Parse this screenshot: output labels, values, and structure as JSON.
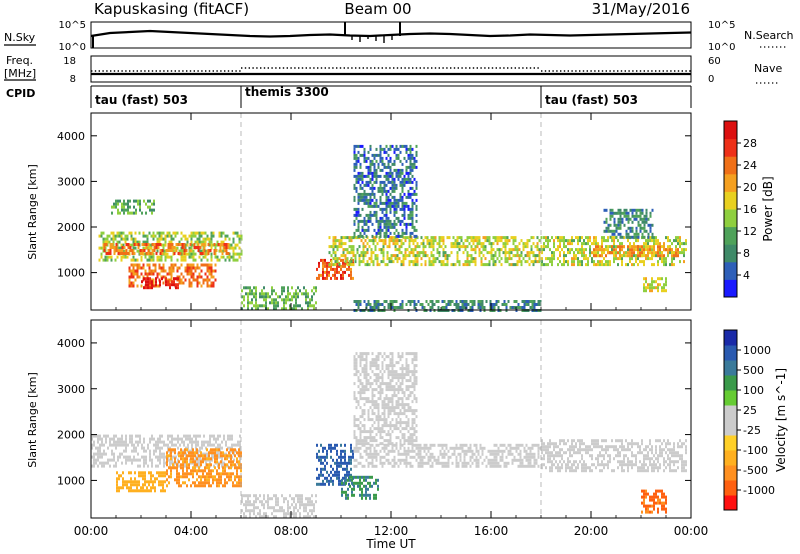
{
  "header": {
    "station": "Kapuskasing (fitACF)",
    "beam": "Beam 00",
    "date": "31/May/2016"
  },
  "strip_labels": {
    "nsky": "N.Sky",
    "nsearch": "N.Search",
    "freq": "Freq.",
    "freq_unit": "[MHz]",
    "nave": "Nave",
    "cpid": "CPID",
    "nsky_ticks": [
      "10^5",
      "10^0"
    ],
    "nsearch_ticks": [
      "10^5",
      "10^0"
    ],
    "freq_ticks": [
      "18",
      "8"
    ],
    "nave_ticks": [
      "60",
      "0"
    ]
  },
  "cpid_segments": [
    {
      "label": "tau (fast) 503",
      "start": 0,
      "end": 6
    },
    {
      "label": "themis 3300",
      "start": 6,
      "end": 18
    },
    {
      "label": "tau (fast) 503",
      "start": 18,
      "end": 24
    }
  ],
  "x_axis": {
    "ticks": [
      "00:00",
      "04:00",
      "08:00",
      "12:00",
      "16:00",
      "20:00",
      "00:00"
    ],
    "label": "Time UT"
  },
  "colorbars": {
    "power": {
      "label": "Power [dB]",
      "ticks": [
        "28",
        "24",
        "20",
        "16",
        "12",
        "8",
        "4"
      ],
      "colors": [
        "#1a1aff",
        "#2e5fb8",
        "#3f8a68",
        "#4fa25a",
        "#8fcf3f",
        "#e8d020",
        "#f5a020",
        "#f07018",
        "#ee3018",
        "#dc1010"
      ]
    },
    "velocity": {
      "label": "Velocity [m s^-1]",
      "ticks": [
        "1000",
        "500",
        "100",
        "25",
        "-25",
        "-100",
        "-500",
        "-1000"
      ],
      "colors": [
        "#ff1010",
        "#ff6010",
        "#ff9020",
        "#ffb020",
        "#ffd028",
        "#cccccc",
        "#cccccc",
        "#66cc33",
        "#3a9a4a",
        "#3a7a9a",
        "#2a5ab0",
        "#1a2aa8"
      ]
    }
  },
  "chart_data": [
    {
      "type": "heatmap",
      "title": "Power",
      "xlabel": "",
      "ylabel": "Slant Range [km]",
      "xlim": [
        0,
        24
      ],
      "ylim": [
        180,
        4500
      ],
      "yticks": [
        1000,
        2000,
        3000,
        4000
      ],
      "colorbar": "Power [dB]",
      "regions": [
        {
          "x0": 0.3,
          "x1": 6.0,
          "y0": 1300,
          "y1": 1900,
          "value": 14
        },
        {
          "x0": 0.5,
          "x1": 5.5,
          "y0": 1450,
          "y1": 1650,
          "value": 22
        },
        {
          "x0": 1.5,
          "x1": 5.0,
          "y0": 700,
          "y1": 1200,
          "value": 22
        },
        {
          "x0": 2.0,
          "x1": 3.5,
          "y0": 700,
          "y1": 900,
          "value": 28
        },
        {
          "x0": 0.8,
          "x1": 2.5,
          "y0": 2300,
          "y1": 2600,
          "value": 10
        },
        {
          "x0": 6.0,
          "x1": 9.0,
          "y0": 200,
          "y1": 700,
          "value": 11
        },
        {
          "x0": 9.0,
          "x1": 10.5,
          "y0": 850,
          "y1": 1300,
          "value": 24
        },
        {
          "x0": 9.5,
          "x1": 18.0,
          "y0": 1200,
          "y1": 1800,
          "value": 15
        },
        {
          "x0": 10.5,
          "x1": 13.0,
          "y0": 1800,
          "y1": 3800,
          "value": 6
        },
        {
          "x0": 10.5,
          "x1": 18.0,
          "y0": 200,
          "y1": 400,
          "value": 8
        },
        {
          "x0": 18.0,
          "x1": 23.8,
          "y0": 1200,
          "y1": 1800,
          "value": 15
        },
        {
          "x0": 20.0,
          "x1": 23.5,
          "y0": 1350,
          "y1": 1600,
          "value": 20
        },
        {
          "x0": 20.5,
          "x1": 22.5,
          "y0": 1800,
          "y1": 2400,
          "value": 8
        },
        {
          "x0": 22.0,
          "x1": 23.0,
          "y0": 600,
          "y1": 900,
          "value": 16
        }
      ]
    },
    {
      "type": "heatmap",
      "title": "Velocity",
      "xlabel": "Time UT",
      "ylabel": "Slant Range [km]",
      "xlim": [
        0,
        24
      ],
      "ylim": [
        180,
        4500
      ],
      "yticks": [
        1000,
        2000,
        3000,
        4000
      ],
      "colorbar": "Velocity [m s^-1]",
      "regions": [
        {
          "x0": 0.0,
          "x1": 6.0,
          "y0": 1300,
          "y1": 2000,
          "value": 0
        },
        {
          "x0": 3.0,
          "x1": 6.0,
          "y0": 900,
          "y1": 1700,
          "value": -300
        },
        {
          "x0": 1.0,
          "x1": 3.0,
          "y0": 800,
          "y1": 1200,
          "value": -150
        },
        {
          "x0": 6.0,
          "x1": 9.0,
          "y0": 200,
          "y1": 700,
          "value": 0
        },
        {
          "x0": 9.0,
          "x1": 10.5,
          "y0": 900,
          "y1": 1800,
          "value": 300
        },
        {
          "x0": 10.0,
          "x1": 11.5,
          "y0": 600,
          "y1": 1100,
          "value": 100
        },
        {
          "x0": 10.5,
          "x1": 13.0,
          "y0": 1800,
          "y1": 3800,
          "value": 0
        },
        {
          "x0": 10.5,
          "x1": 18.0,
          "y0": 1300,
          "y1": 1800,
          "value": 0
        },
        {
          "x0": 18.0,
          "x1": 23.8,
          "y0": 1200,
          "y1": 1900,
          "value": 0
        },
        {
          "x0": 22.0,
          "x1": 23.0,
          "y0": 300,
          "y1": 800,
          "value": -600
        }
      ]
    }
  ]
}
